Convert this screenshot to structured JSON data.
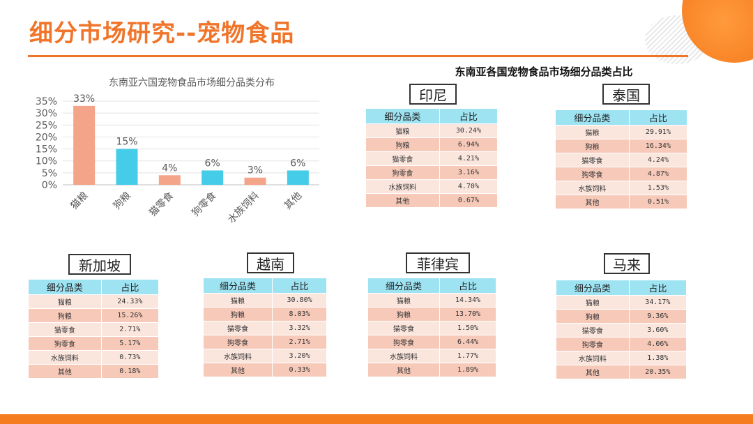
{
  "page": {
    "title": "细分市场研究--宠物食品",
    "right_title": "东南亚各国宠物食品市场细分品类占比"
  },
  "colors": {
    "accent": "#f0742a",
    "bar_orange": "#f4a488",
    "bar_blue": "#45cce8",
    "header_cyan": "#9de3f2"
  },
  "chart_data": {
    "type": "bar",
    "title": "东南亚六国宠物食品市场细分品类分布",
    "categories": [
      "猫粮",
      "狗粮",
      "猫零食",
      "狗零食",
      "水族饲料",
      "其他"
    ],
    "values": [
      33,
      15,
      4,
      6,
      3,
      6
    ],
    "value_labels": [
      "33%",
      "15%",
      "4%",
      "6%",
      "3%",
      "6%"
    ],
    "bar_colors": [
      "#f4a488",
      "#45cce8",
      "#f4a488",
      "#45cce8",
      "#f4a488",
      "#45cce8"
    ],
    "ylim": [
      0,
      35
    ],
    "yticks": [
      "0%",
      "5%",
      "10%",
      "15%",
      "20%",
      "25%",
      "30%",
      "35%"
    ],
    "grid": true
  },
  "table_headers": [
    "细分品类",
    "占比"
  ],
  "countries": [
    {
      "name": "印尼",
      "rows": [
        [
          "猫粮",
          "30.24%"
        ],
        [
          "狗粮",
          "6.94%"
        ],
        [
          "猫零食",
          "4.21%"
        ],
        [
          "狗零食",
          "3.16%"
        ],
        [
          "水族饲料",
          "4.70%"
        ],
        [
          "其他",
          "0.67%"
        ]
      ]
    },
    {
      "name": "泰国",
      "rows": [
        [
          "猫粮",
          "29.91%"
        ],
        [
          "狗粮",
          "16.34%"
        ],
        [
          "猫零食",
          "4.24%"
        ],
        [
          "狗零食",
          "4.87%"
        ],
        [
          "水族饲料",
          "1.53%"
        ],
        [
          "其他",
          "0.51%"
        ]
      ]
    },
    {
      "name": "新加坡",
      "rows": [
        [
          "猫粮",
          "24.33%"
        ],
        [
          "狗粮",
          "15.26%"
        ],
        [
          "猫零食",
          "2.71%"
        ],
        [
          "狗零食",
          "5.17%"
        ],
        [
          "水族饲料",
          "0.73%"
        ],
        [
          "其他",
          "0.18%"
        ]
      ]
    },
    {
      "name": "越南",
      "rows": [
        [
          "猫粮",
          "30.80%"
        ],
        [
          "狗粮",
          "8.03%"
        ],
        [
          "猫零食",
          "3.32%"
        ],
        [
          "狗零食",
          "2.71%"
        ],
        [
          "水族饲料",
          "3.20%"
        ],
        [
          "其他",
          "0.33%"
        ]
      ]
    },
    {
      "name": "菲律宾",
      "rows": [
        [
          "猫粮",
          "14.34%"
        ],
        [
          "狗粮",
          "13.70%"
        ],
        [
          "猫零食",
          "1.50%"
        ],
        [
          "狗零食",
          "6.44%"
        ],
        [
          "水族饲料",
          "1.77%"
        ],
        [
          "其他",
          "1.89%"
        ]
      ]
    },
    {
      "name": "马来",
      "rows": [
        [
          "猫粮",
          "34.17%"
        ],
        [
          "狗粮",
          "9.36%"
        ],
        [
          "猫零食",
          "3.60%"
        ],
        [
          "狗零食",
          "4.06%"
        ],
        [
          "水族饲料",
          "1.38%"
        ],
        [
          "其他",
          "20.35%"
        ]
      ]
    }
  ]
}
